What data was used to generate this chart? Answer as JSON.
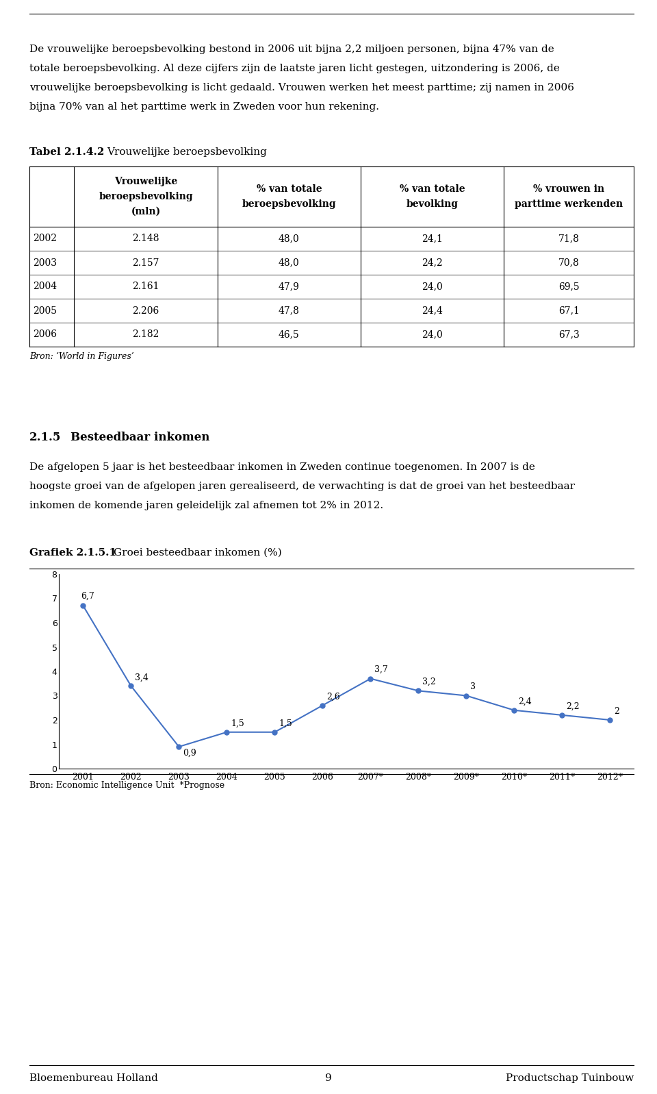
{
  "page_width": 9.6,
  "page_height": 15.97,
  "background_color": "#ffffff",
  "table_title_bold": "Tabel 2.1.4.2",
  "table_headers_line1": [
    "Vrouwelijke",
    "% van totale",
    "% van totale",
    "% vrouwen in"
  ],
  "table_headers_line2": [
    "beroepsbevolking",
    "beroepsbevolking",
    "bevolking",
    "parttime werkenden"
  ],
  "table_headers_line3": [
    "(mln)",
    "",
    "",
    ""
  ],
  "table_rows": [
    [
      "2002",
      "2.148",
      "48,0",
      "24,1",
      "71,8"
    ],
    [
      "2003",
      "2.157",
      "48,0",
      "24,2",
      "70,8"
    ],
    [
      "2004",
      "2.161",
      "47,9",
      "24,0",
      "69,5"
    ],
    [
      "2005",
      "2.206",
      "47,8",
      "24,4",
      "67,1"
    ],
    [
      "2006",
      "2.182",
      "46,5",
      "24,0",
      "67,3"
    ]
  ],
  "table_source": "Bron: ‘World in Figures’",
  "section_num": "2.1.5",
  "section_title": "Besteedbaar inkomen",
  "chart_label_bold": "Grafiek 2.1.5.1",
  "chart_label_normal": "Groei besteedbaar inkomen (%)",
  "chart_x_labels": [
    "2001",
    "2002",
    "2003",
    "2004",
    "2005",
    "2006",
    "2007*",
    "2008*",
    "2009*",
    "2010*",
    "2011*",
    "2012*"
  ],
  "chart_y_values": [
    6.7,
    3.4,
    0.9,
    1.5,
    1.5,
    2.6,
    3.7,
    3.2,
    3.0,
    2.4,
    2.2,
    2.0
  ],
  "chart_data_labels": [
    "6,7",
    "3,4",
    "0,9",
    "1,5",
    "1,5",
    "2,6",
    "3,7",
    "3,2",
    "3",
    "2,4",
    "2,2",
    "2"
  ],
  "chart_ylim": [
    0,
    8
  ],
  "chart_yticks": [
    0,
    1,
    2,
    3,
    4,
    5,
    6,
    7,
    8
  ],
  "chart_line_color": "#4472C4",
  "chart_source": "Bron: Economic Intelligence Unit  *Prognose",
  "footer_left": "Bloemenbureau Holland",
  "footer_center": "9",
  "footer_right": "Productschap Tuinbouw",
  "body_fontsize": 11,
  "body_font": "serif",
  "text_color": "#000000",
  "para1_lines": [
    "De vrouwelijke beroepsbevolking bestond in 2006 uit bijna 2,2 miljoen personen, bijna 47% van de",
    "totale beroepsbevolking. Al deze cijfers zijn de laatste jaren licht gestegen, uitzondering is 2006, de",
    "vrouwelijke beroepsbevolking is licht gedaald. Vrouwen werken het meest parttime; zij namen in 2006",
    "bijna 70% van al het parttime werk in Zweden voor hun rekening."
  ],
  "para2_lines": [
    "De afgelopen 5 jaar is het besteedbaar inkomen in Zweden continue toegenomen. In 2007 is de",
    "hoogste groei van de afgelopen jaren gerealiseerd, de verwachting is dat de groei van het besteedbaar",
    "inkomen de komende jaren geleidelijk zal afnemen tot 2% in 2012."
  ]
}
